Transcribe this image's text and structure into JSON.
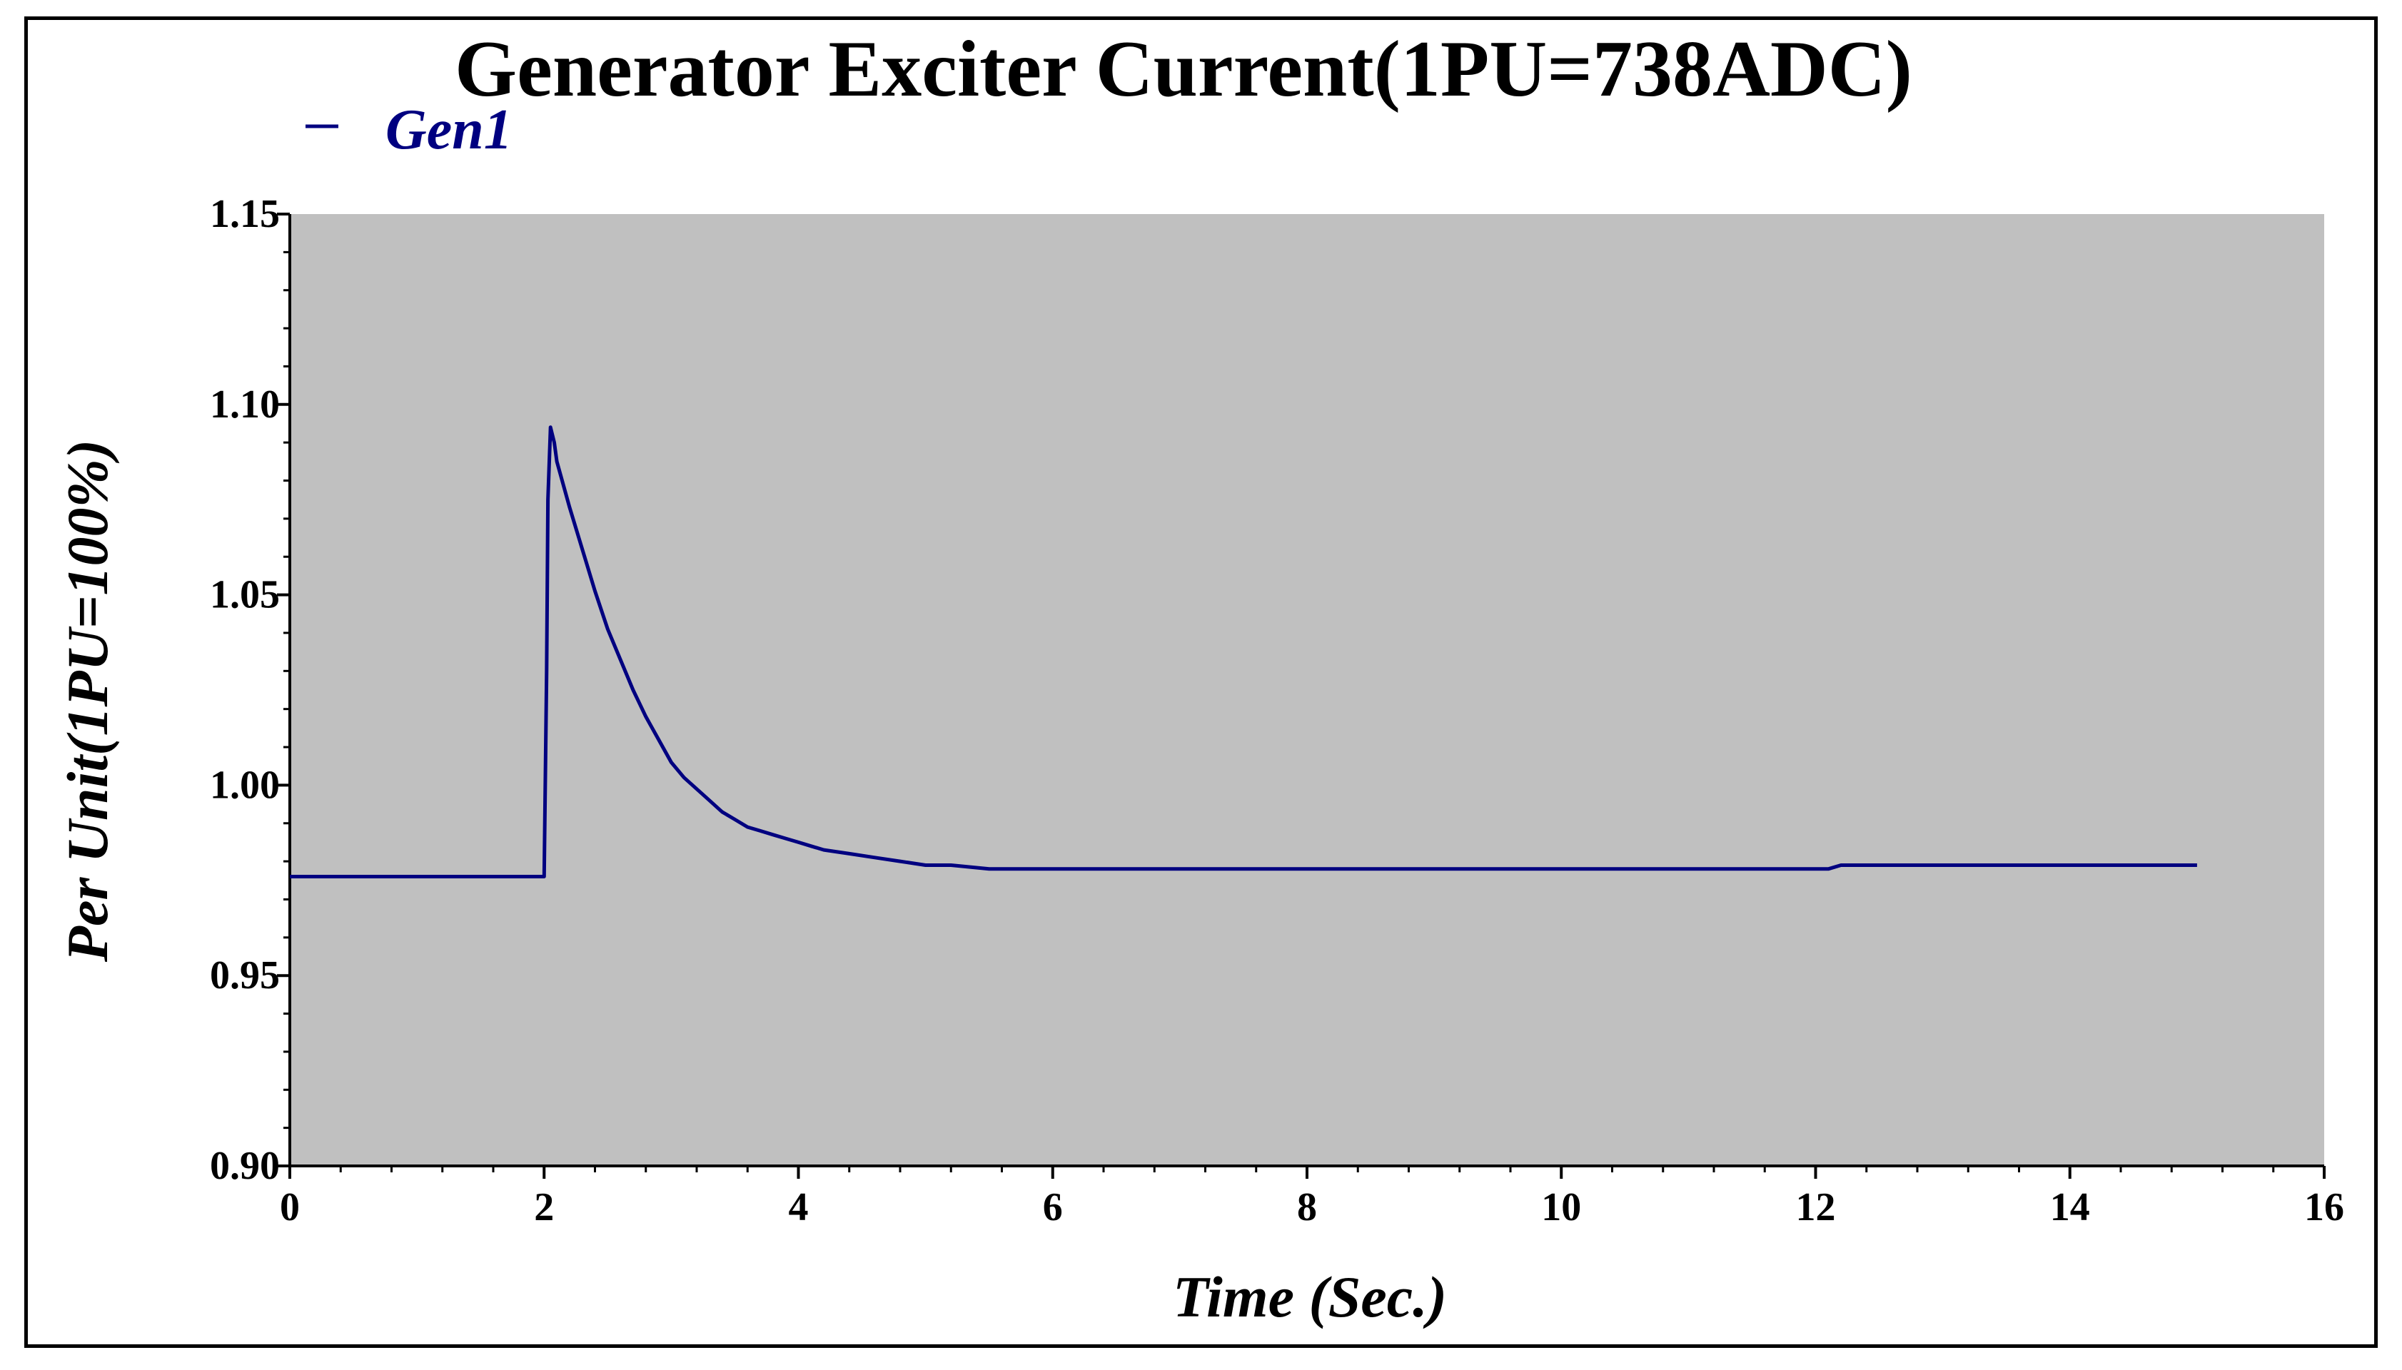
{
  "chart_data": {
    "type": "line",
    "title": "Generator Exciter Current(1PU=738ADC)",
    "xlabel": "Time (Sec.)",
    "ylabel": "Per Unit(1PU=100%)",
    "xlim": [
      0,
      16
    ],
    "ylim": [
      0.9,
      1.15
    ],
    "x_ticks": [
      0,
      2,
      4,
      6,
      8,
      10,
      12,
      14,
      16
    ],
    "x_tick_labels": [
      "0",
      "2",
      "4",
      "6",
      "8",
      "10",
      "12",
      "14",
      "16"
    ],
    "y_ticks": [
      0.9,
      0.95,
      1.0,
      1.05,
      1.1,
      1.15
    ],
    "y_tick_labels": [
      "0.90",
      "0.95",
      "1.00",
      "1.05",
      "1.10",
      "1.15"
    ],
    "x_minor_step": 0.4,
    "y_minor_step": 0.01,
    "grid": false,
    "legend_position": "top-left",
    "plot_background": "#c0c0c0",
    "series": [
      {
        "name": "Gen1",
        "color": "#000080",
        "x": [
          0,
          2.0,
          2.02,
          2.03,
          2.05,
          2.08,
          2.1,
          2.2,
          2.3,
          2.4,
          2.5,
          2.6,
          2.7,
          2.8,
          2.9,
          3.0,
          3.1,
          3.2,
          3.3,
          3.4,
          3.5,
          3.6,
          3.7,
          3.8,
          3.9,
          4.0,
          4.1,
          4.2,
          4.4,
          4.6,
          4.8,
          5.0,
          5.2,
          5.5,
          6.0,
          8.0,
          10.0,
          12.1,
          12.2,
          13.0,
          14.0,
          15.0
        ],
        "values": [
          0.976,
          0.976,
          1.03,
          1.075,
          1.094,
          1.09,
          1.085,
          1.073,
          1.062,
          1.051,
          1.041,
          1.033,
          1.025,
          1.018,
          1.012,
          1.006,
          1.002,
          0.999,
          0.996,
          0.993,
          0.991,
          0.989,
          0.988,
          0.987,
          0.986,
          0.985,
          0.984,
          0.983,
          0.982,
          0.981,
          0.98,
          0.979,
          0.979,
          0.978,
          0.978,
          0.978,
          0.978,
          0.978,
          0.979,
          0.979,
          0.979,
          0.979
        ]
      }
    ]
  }
}
